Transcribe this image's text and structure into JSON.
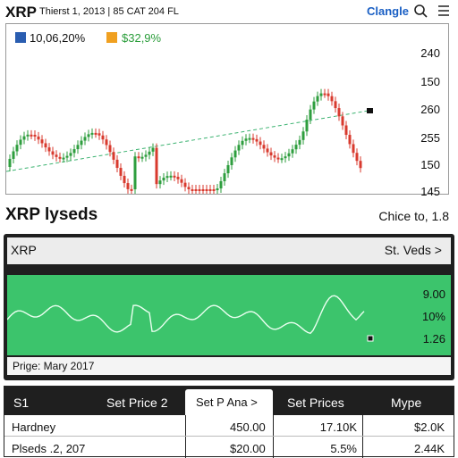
{
  "header": {
    "title": "XRP",
    "subtitle": "Thierst 1, 2013 | 85 CAT 204 FL",
    "link": "Clangle"
  },
  "price_chart": {
    "badges": [
      "10,06,20%",
      "$32,9%"
    ],
    "axis_labels": [
      "240",
      "150",
      "260",
      "255",
      "150",
      "145"
    ]
  },
  "section": {
    "title": "XRP lyseds",
    "note": "Chice to, 1.8"
  },
  "panel": {
    "title": "XRP",
    "action": "St. Veds",
    "axis_labels": [
      "9.00",
      "10%",
      "1.26"
    ],
    "caption": "Prige: Mary 2017"
  },
  "table": {
    "header": [
      "S1",
      "Set Price 2",
      "Set P Ana",
      "Set Prices",
      "Mype"
    ],
    "rows": [
      [
        "Hardney",
        "450.00",
        "17.10K",
        "$2.0K"
      ],
      [
        "Plseds .2, 207",
        "$20.00",
        "5.5%",
        "2.44K"
      ]
    ]
  }
}
